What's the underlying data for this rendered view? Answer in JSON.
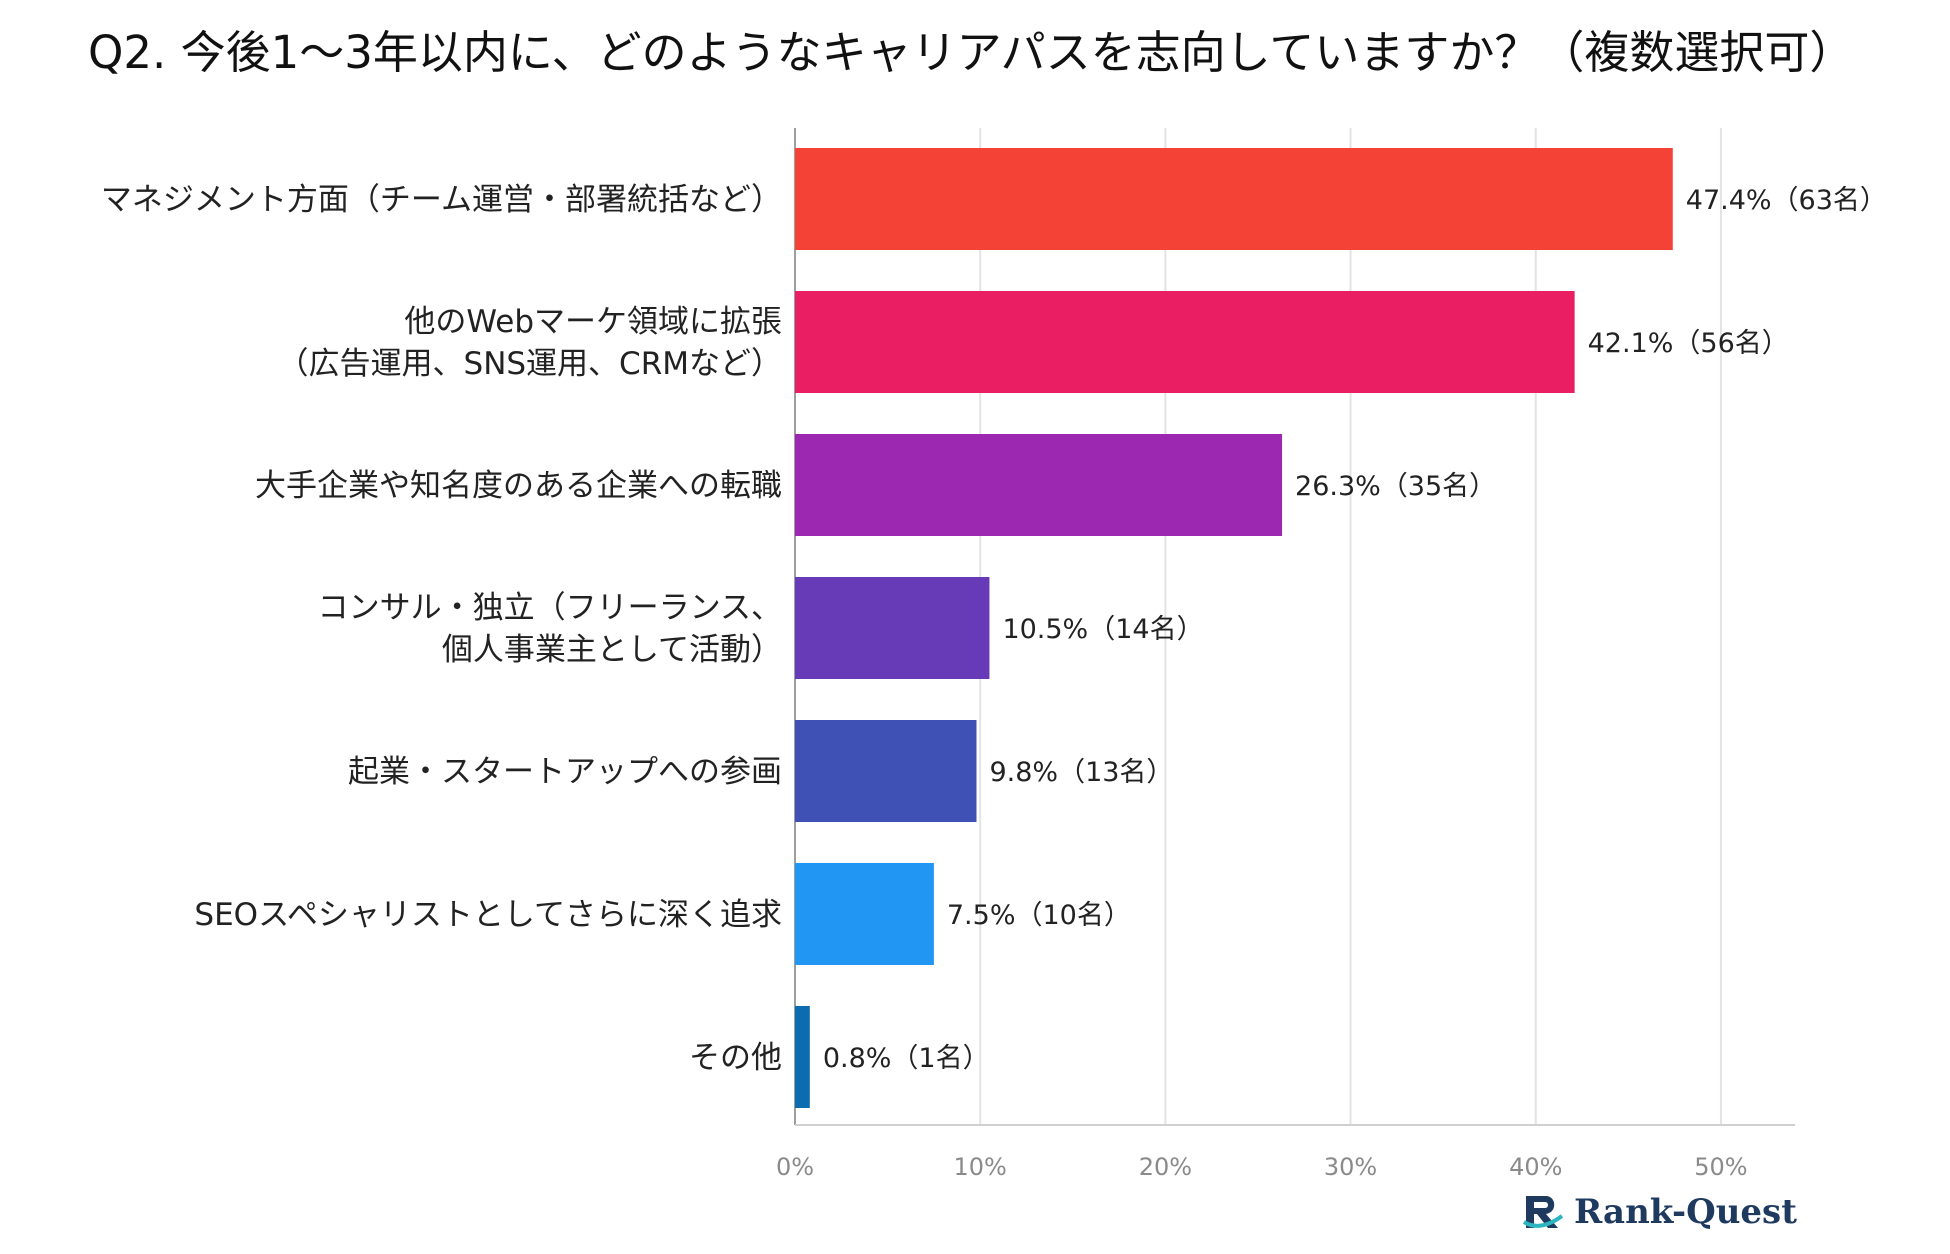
{
  "title": "Q2. 今後1～3年以内に、どのようなキャリアパスを志向していますか？（複数選択可）",
  "chart_data": {
    "type": "bar",
    "orientation": "horizontal",
    "title": "Q2. 今後1～3年以内に、どのようなキャリアパスを志向していますか？（複数選択可）",
    "categories": [
      [
        "マネジメント方面（チーム運営・部署統括など）"
      ],
      [
        "他のWebマーケ領域に拡張",
        "（広告運用、SNS運用、CRMなど）"
      ],
      [
        "大手企業や知名度のある企業への転職"
      ],
      [
        "コンサル・独立（フリーランス、",
        "個人事業主として活動）"
      ],
      [
        "起業・スタートアップへの参画"
      ],
      [
        "SEOスペシャリストとしてさらに深く追求"
      ],
      [
        "その他"
      ]
    ],
    "values": [
      47.4,
      42.1,
      26.3,
      10.5,
      9.8,
      7.5,
      0.8
    ],
    "data_labels": [
      "47.4%（63名）",
      "42.1%（56名）",
      "26.3%（35名）",
      "10.5%（14名）",
      "9.8%（13名）",
      "7.5%（10名）",
      "0.8%（1名）"
    ],
    "colors": [
      "#f44336",
      "#e91e63",
      "#9c27b0",
      "#673ab7",
      "#3f51b5",
      "#2196f3",
      "#0b6db0"
    ],
    "xlim": [
      0,
      54
    ],
    "xticks": [
      0,
      10,
      20,
      30,
      40,
      50
    ],
    "xtick_labels": [
      "0%",
      "10%",
      "20%",
      "30%",
      "40%",
      "50%"
    ],
    "xlabel": "",
    "ylabel": "",
    "grid": true
  },
  "brand": {
    "name": "Rank-Quest",
    "icon": "rank-quest-logo-icon"
  }
}
